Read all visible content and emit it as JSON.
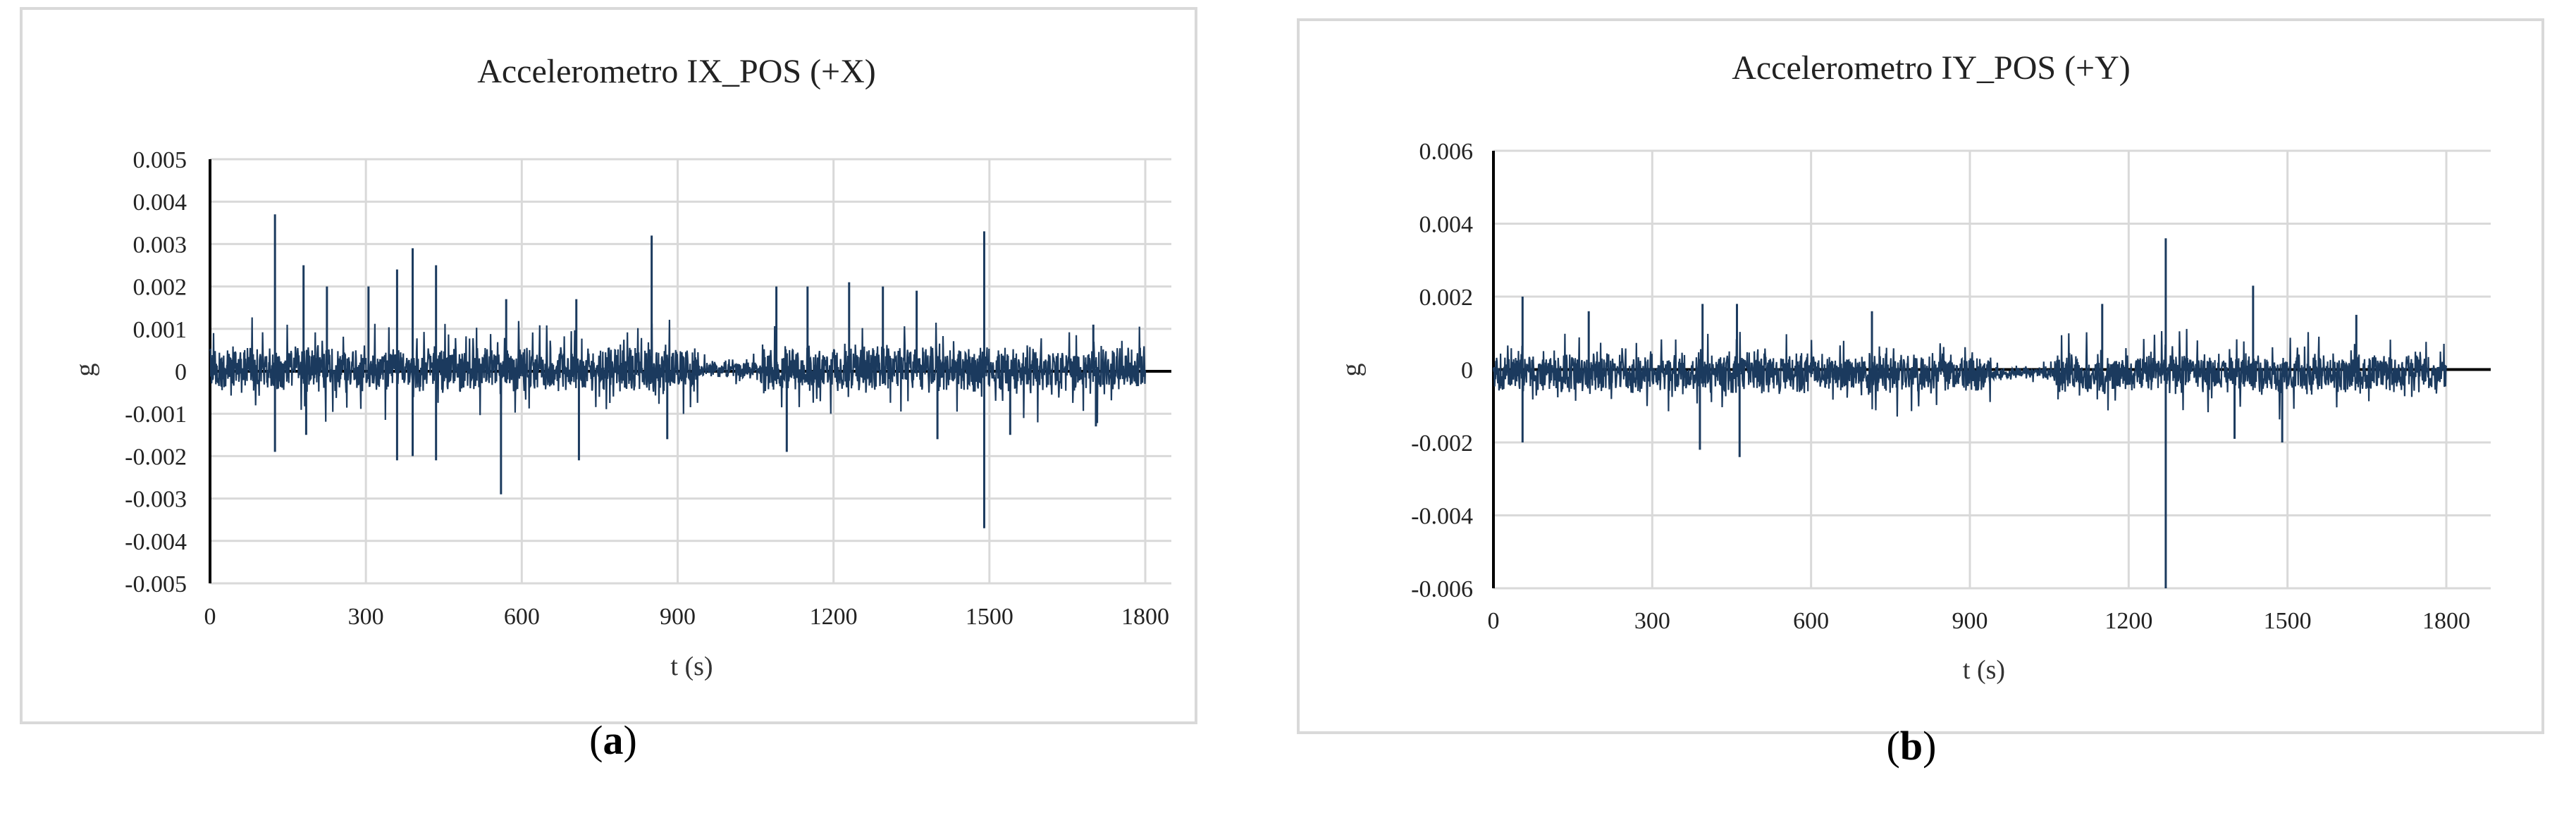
{
  "chart_data": [
    {
      "type": "line",
      "panel": "(a)",
      "panel_letter": "a",
      "title": "Accelerometro IX_POS (+X)",
      "xlabel": "t (s)",
      "ylabel": "g",
      "xlim": [
        0,
        1800
      ],
      "ylim": [
        -0.005,
        0.005
      ],
      "xticks": [
        "0",
        "300",
        "600",
        "900",
        "1200",
        "1500",
        "1800"
      ],
      "yticks": [
        "0.005",
        "0.004",
        "0.003",
        "0.002",
        "0.001",
        "0",
        "-0.001",
        "-0.002",
        "-0.003",
        "-0.004",
        "-0.005"
      ],
      "grid": true,
      "color": "#1b3a5e",
      "noise_amplitude": 0.0005,
      "spikes": [
        [
          125,
          0.0037
        ],
        [
          125,
          -0.0019
        ],
        [
          180,
          0.0025
        ],
        [
          185,
          -0.0015
        ],
        [
          225,
          0.002
        ],
        [
          305,
          0.002
        ],
        [
          360,
          0.0024
        ],
        [
          360,
          -0.0021
        ],
        [
          390,
          0.0029
        ],
        [
          390,
          -0.002
        ],
        [
          435,
          0.0025
        ],
        [
          435,
          -0.0021
        ],
        [
          560,
          -0.0029
        ],
        [
          570,
          0.0017
        ],
        [
          705,
          0.0017
        ],
        [
          710,
          -0.0021
        ],
        [
          850,
          0.0032
        ],
        [
          880,
          -0.0016
        ],
        [
          1090,
          0.002
        ],
        [
          1110,
          -0.0019
        ],
        [
          1150,
          0.002
        ],
        [
          1230,
          0.0021
        ],
        [
          1295,
          0.002
        ],
        [
          1360,
          0.0019
        ],
        [
          1400,
          -0.0016
        ],
        [
          1490,
          0.0033
        ],
        [
          1490,
          -0.0037
        ],
        [
          1540,
          -0.0015
        ],
        [
          1700,
          0.0011
        ],
        [
          1705,
          -0.0013
        ]
      ]
    },
    {
      "type": "line",
      "panel": "(b)",
      "panel_letter": "b",
      "title": "Accelerometro IY_POS (+Y)",
      "xlabel": "t (s)",
      "ylabel": "g",
      "xlim": [
        0,
        1800
      ],
      "ylim": [
        -0.006,
        0.006
      ],
      "xticks": [
        "0",
        "300",
        "600",
        "900",
        "1200",
        "1500",
        "1800"
      ],
      "yticks": [
        "0.006",
        "0.004",
        "0.002",
        "0",
        "-0.002",
        "-0.004",
        "-0.006"
      ],
      "grid": true,
      "color": "#1b3a5e",
      "noise_amplitude": 0.0005,
      "spikes": [
        [
          55,
          0.002
        ],
        [
          55,
          -0.002
        ],
        [
          180,
          0.0016
        ],
        [
          390,
          -0.0022
        ],
        [
          395,
          0.0018
        ],
        [
          460,
          0.0018
        ],
        [
          465,
          -0.0024
        ],
        [
          715,
          0.0016
        ],
        [
          1150,
          0.0018
        ],
        [
          1270,
          0.0036
        ],
        [
          1270,
          -0.006
        ],
        [
          1400,
          -0.0019
        ],
        [
          1435,
          0.0023
        ],
        [
          1490,
          -0.002
        ],
        [
          1630,
          0.0015
        ]
      ]
    }
  ]
}
